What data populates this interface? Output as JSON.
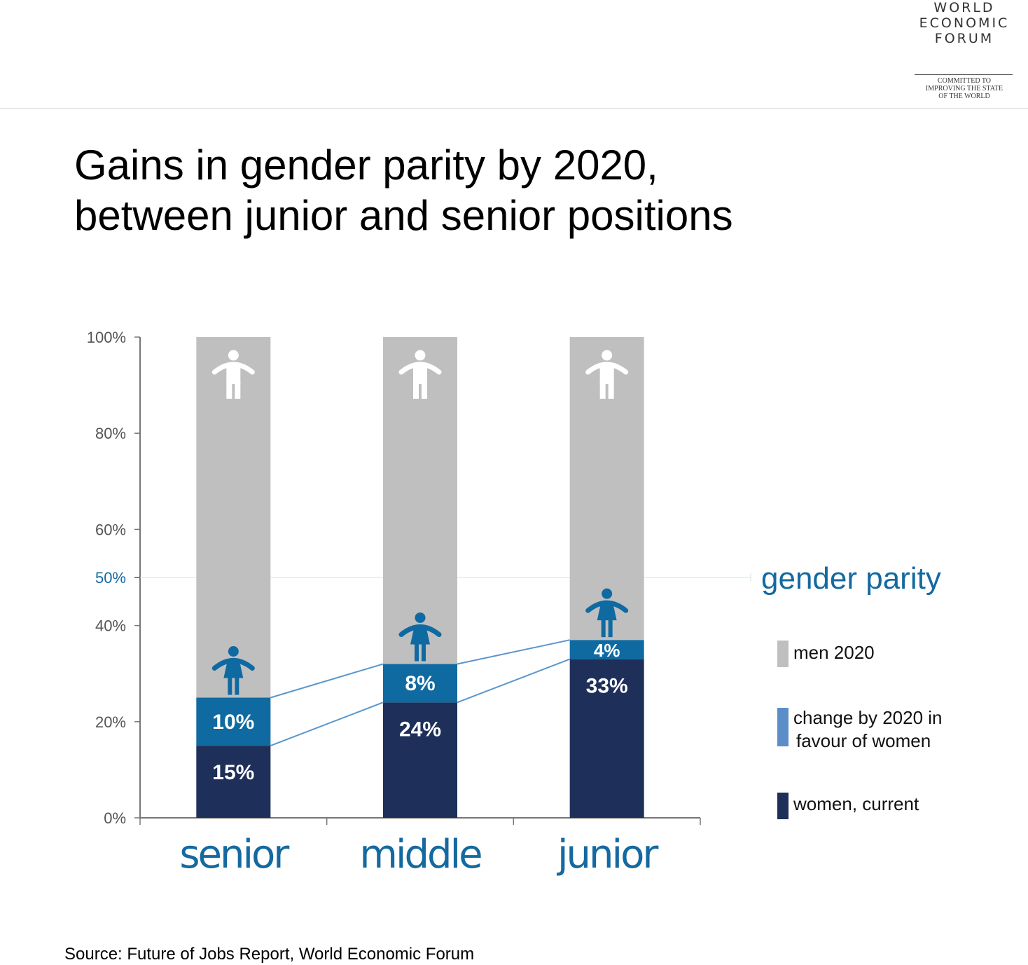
{
  "logo": {
    "lines": [
      "WORLD",
      "ECONOMIC",
      "FORUM"
    ],
    "tagline": [
      "COMMITTED TO",
      "IMPROVING THE STATE",
      "OF THE WORLD"
    ]
  },
  "title_lines": [
    "Gains in gender parity by 2020,",
    "between junior and senior positions"
  ],
  "source": "Source: Future of Jobs Report, World Economic Forum",
  "colors": {
    "men": "#bfbfbf",
    "change": "#0f6aa1",
    "women": "#1e2f59",
    "legend_change": "#5b8ec9",
    "connector": "#5a96cc",
    "accent": "#1469a0",
    "axis": "#777777"
  },
  "chart_data": {
    "type": "bar",
    "stacked": true,
    "categories": [
      "senior",
      "middle",
      "junior"
    ],
    "series": [
      {
        "name": "women, current",
        "values": [
          15,
          24,
          33
        ],
        "labels": [
          "15%",
          "24%",
          "33%"
        ]
      },
      {
        "name": "change by 2020 in favour of women",
        "values": [
          10,
          8,
          4
        ],
        "labels": [
          "10%",
          "8%",
          "4%"
        ]
      },
      {
        "name": "men 2020",
        "values": [
          75,
          68,
          63
        ]
      }
    ],
    "legend": [
      "men 2020",
      "change by 2020 in favour of women",
      "women, current"
    ],
    "legend_placement": "right",
    "ylim": [
      0,
      100
    ],
    "yticks": [
      {
        "value": 0,
        "label": "0%"
      },
      {
        "value": 20,
        "label": "20%"
      },
      {
        "value": 40,
        "label": "40%"
      },
      {
        "value": 50,
        "label": "50%"
      },
      {
        "value": 60,
        "label": "60%"
      },
      {
        "value": 80,
        "label": "80%"
      },
      {
        "value": 100,
        "label": "100%"
      }
    ],
    "reference_line": {
      "value": 50,
      "label": "gender parity"
    },
    "icons": {
      "man": "man-icon",
      "woman": "woman-icon"
    },
    "grid": false
  }
}
